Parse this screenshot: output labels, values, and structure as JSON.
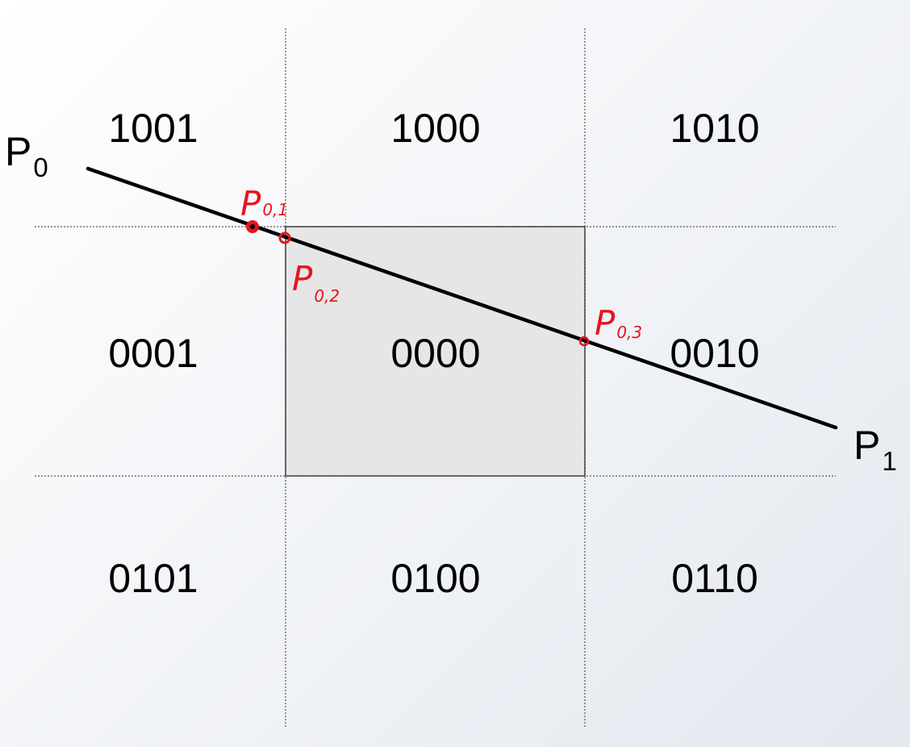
{
  "diagram": {
    "region_codes": {
      "top_left": "1001",
      "top_center": "1000",
      "top_right": "1010",
      "middle_left": "0001",
      "middle_center": "0000",
      "middle_right": "0010",
      "bottom_left": "0101",
      "bottom_center": "0100",
      "bottom_right": "0110"
    },
    "endpoints": {
      "start": {
        "letter": "P",
        "subscript": "0"
      },
      "end": {
        "letter": "P",
        "subscript": "1"
      }
    },
    "intersections": [
      {
        "letter": "P",
        "subscript": "0,1"
      },
      {
        "letter": "P",
        "subscript": "0,2"
      },
      {
        "letter": "P",
        "subscript": "0,3"
      }
    ],
    "colors": {
      "clip_window_fill": "#e6e6e6",
      "line": "#000000",
      "annotation": "#e8141e",
      "guide_lines": "#555555"
    }
  }
}
